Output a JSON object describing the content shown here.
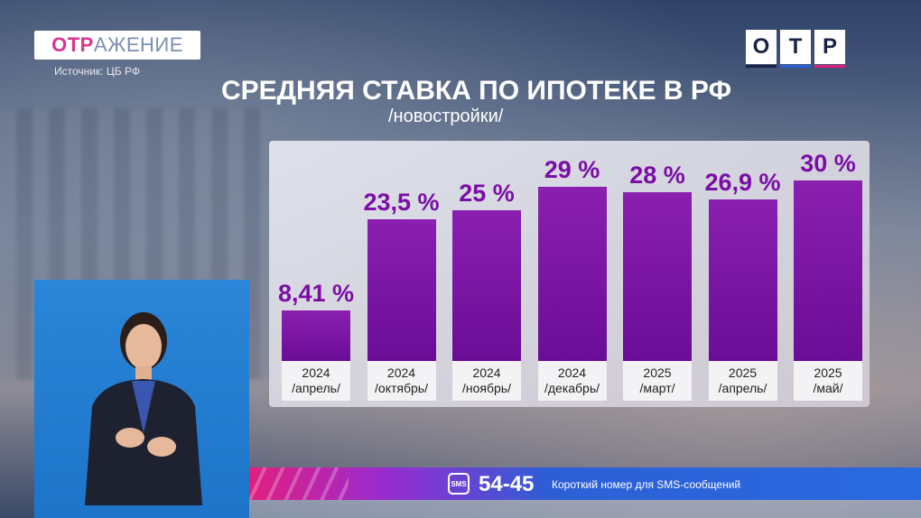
{
  "brand": {
    "channel_logo_prefix": "ОТР",
    "channel_logo_rest": "АЖЕНИЕ",
    "source": "Источник: ЦБ РФ",
    "network_logo_letters": [
      "О",
      "Т",
      "Р"
    ],
    "network_logo_colors": [
      "#1a2347",
      "#2c5fd6",
      "#e01f7e"
    ]
  },
  "chart_data": {
    "type": "bar",
    "title": "СРЕДНЯЯ СТАВКА ПО ИПОТЕКЕ В РФ",
    "subtitle": "/новостройки/",
    "categories": [
      [
        "2024",
        "/апрель/"
      ],
      [
        "2024",
        "/октябрь/"
      ],
      [
        "2024",
        "/ноябрь/"
      ],
      [
        "2024",
        "/декабрь/"
      ],
      [
        "2025",
        "/март/"
      ],
      [
        "2025",
        "/апрель/"
      ],
      [
        "2025",
        "/май/"
      ]
    ],
    "values": [
      8.41,
      23.5,
      25,
      29,
      28,
      26.9,
      30
    ],
    "value_labels": [
      "8,41 %",
      "23,5 %",
      "25 %",
      "29 %",
      "28 %",
      "26,9 %",
      "30 %"
    ],
    "ylim": [
      0,
      30
    ],
    "bar_color": "#7a0ea6"
  },
  "footer": {
    "sms_icon_text": "SMS",
    "sms_number": "54-45",
    "sms_caption": "Короткий номер для SMS-сообщений"
  }
}
